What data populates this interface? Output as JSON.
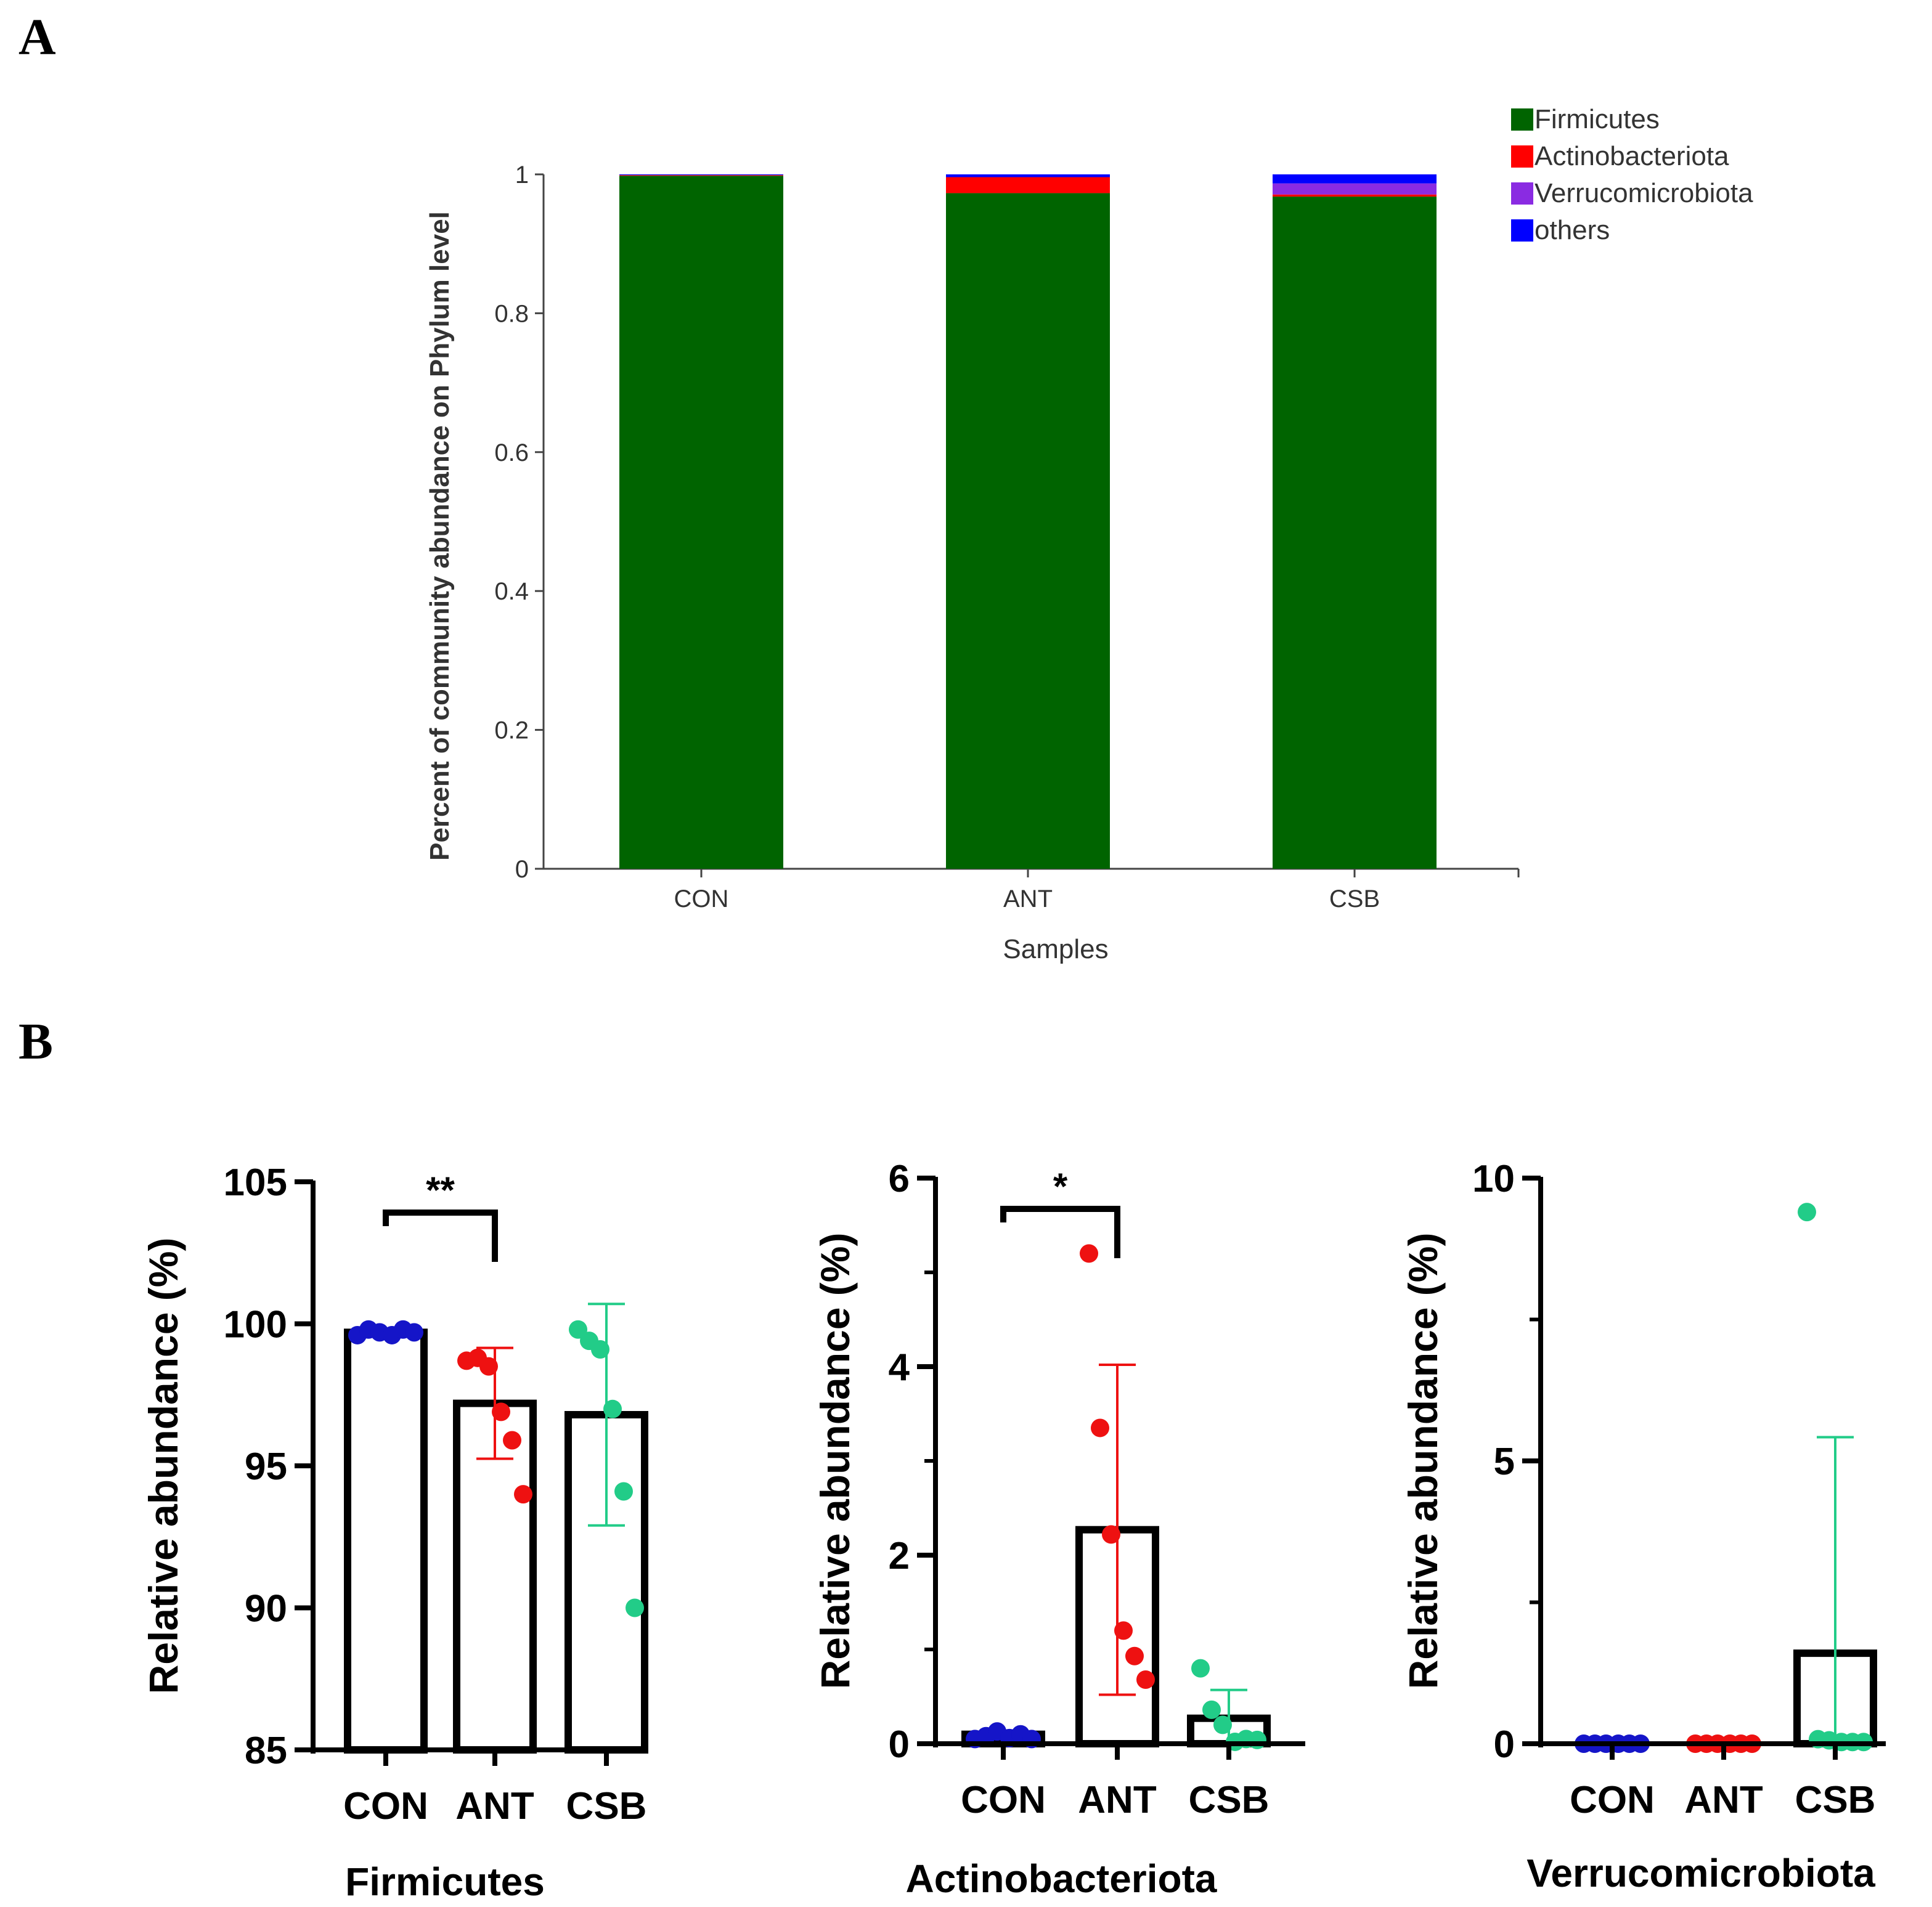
{
  "panels": {
    "a": "A",
    "b": "B"
  },
  "colors": {
    "Firmicutes": "#006400",
    "Actinobacteriota": "#ff0000",
    "Verrucomicrobiota": "#8a2be2",
    "others": "#0000ff",
    "CON_dot": "#1515c8",
    "ANT_dot": "#ee1111",
    "CSB_dot": "#22cc88"
  },
  "chart_data": [
    {
      "type": "bar",
      "stacked": true,
      "xlabel": "Samples",
      "ylabel": "Percent of community abundance on Phylum level",
      "ylim": [
        0,
        1
      ],
      "yticks": [
        "0",
        "0.2",
        "0.4",
        "0.6",
        "0.8",
        "1"
      ],
      "categories": [
        "CON",
        "ANT",
        "CSB"
      ],
      "legend_position": "top-right",
      "series": [
        {
          "name": "Firmicutes",
          "values": [
            0.998,
            0.973,
            0.968
          ]
        },
        {
          "name": "Actinobacteriota",
          "values": [
            0.001,
            0.023,
            0.003
          ]
        },
        {
          "name": "Verrucomicrobiota",
          "values": [
            0.0,
            0.0,
            0.016
          ]
        },
        {
          "name": "others",
          "values": [
            0.001,
            0.004,
            0.013
          ]
        }
      ]
    },
    {
      "type": "bar",
      "title": "Firmicutes",
      "ylabel": "Relative abundance (%)",
      "ylim": [
        85,
        105
      ],
      "yticks": [
        "85",
        "90",
        "95",
        "100",
        "105"
      ],
      "categories": [
        "CON",
        "ANT",
        "CSB"
      ],
      "means": [
        99.7,
        97.2,
        96.8
      ],
      "sd": [
        0.1,
        1.95,
        3.9
      ],
      "points": [
        [
          99.6,
          99.8,
          99.7,
          99.6,
          99.8,
          99.7
        ],
        [
          98.7,
          98.8,
          98.5,
          96.9,
          95.9,
          94.0
        ],
        [
          99.8,
          99.4,
          99.1,
          97.0,
          94.1,
          90.0
        ]
      ],
      "significance": {
        "pair": [
          "CON",
          "ANT"
        ],
        "label": "**"
      }
    },
    {
      "type": "bar",
      "title": "Actinobacteriota",
      "ylabel": "Relative abundance (%)",
      "ylim": [
        0,
        6
      ],
      "yticks": [
        "0",
        "2",
        "4",
        "6"
      ],
      "categories": [
        "CON",
        "ANT",
        "CSB"
      ],
      "means": [
        0.1,
        2.27,
        0.27
      ],
      "sd": [
        0.04,
        1.75,
        0.3
      ],
      "points": [
        [
          0.05,
          0.08,
          0.13,
          0.06,
          0.1,
          0.05
        ],
        [
          5.2,
          3.35,
          2.22,
          1.2,
          0.93,
          0.68
        ],
        [
          0.8,
          0.36,
          0.2,
          0.02,
          0.05,
          0.04
        ]
      ],
      "significance": {
        "pair": [
          "CON",
          "ANT"
        ],
        "label": "*"
      }
    },
    {
      "type": "bar",
      "title": "Verrucomicrobiota",
      "ylabel": "Relative abundance (%)",
      "ylim": [
        0,
        10
      ],
      "yticks": [
        "0",
        "5",
        "10"
      ],
      "categories": [
        "CON",
        "ANT",
        "CSB"
      ],
      "means": [
        0.0,
        0.0,
        1.6
      ],
      "sd": [
        0.0,
        0.0,
        3.82
      ],
      "points": [
        [
          0,
          0,
          0,
          0,
          0,
          0
        ],
        [
          0,
          0,
          0,
          0,
          0,
          0
        ],
        [
          9.4,
          0.08,
          0.06,
          0.03,
          0.03,
          0.03
        ]
      ]
    }
  ]
}
